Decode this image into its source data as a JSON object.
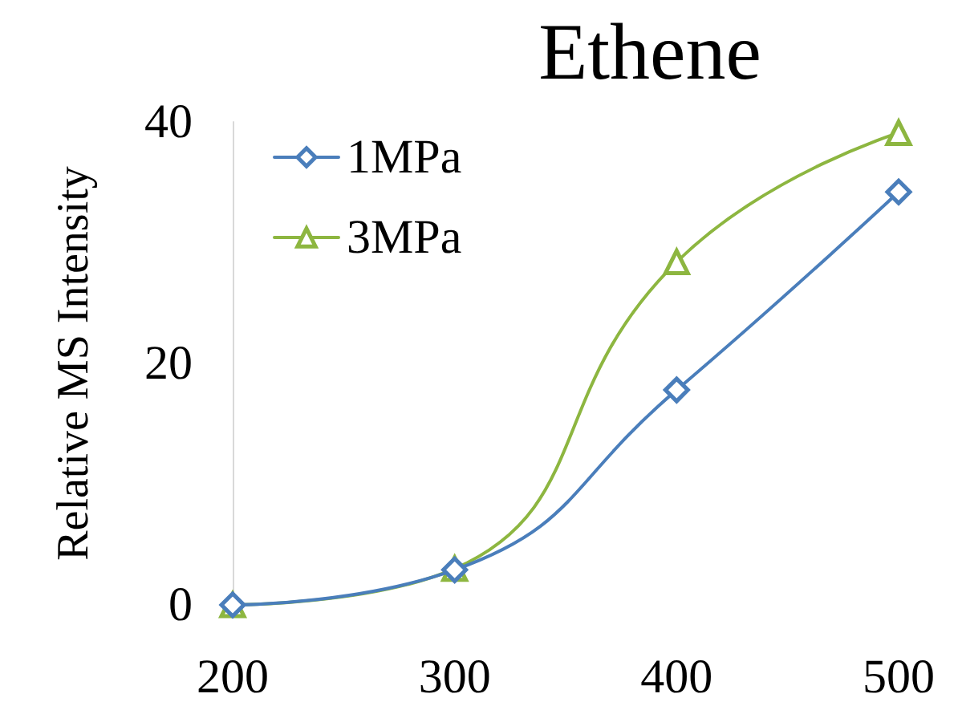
{
  "chart_data": {
    "type": "line",
    "title": "Ethene",
    "ylabel": "Relative MS Intensity",
    "x": [
      200,
      300,
      400,
      500
    ],
    "xlim": [
      200,
      500
    ],
    "xticks": [
      200,
      300,
      400,
      500
    ],
    "ylim": [
      0,
      40
    ],
    "yticks": [
      0,
      20,
      40
    ],
    "series": [
      {
        "name": "1MPa",
        "color": "#4a7ebb",
        "marker": "diamond",
        "values": [
          0,
          2.9,
          17.8,
          34.2
        ]
      },
      {
        "name": "3MPa",
        "color": "#8db640",
        "marker": "triangle",
        "values": [
          0,
          3.0,
          28.4,
          39.1
        ]
      }
    ],
    "legend": "top left",
    "grid": false
  }
}
